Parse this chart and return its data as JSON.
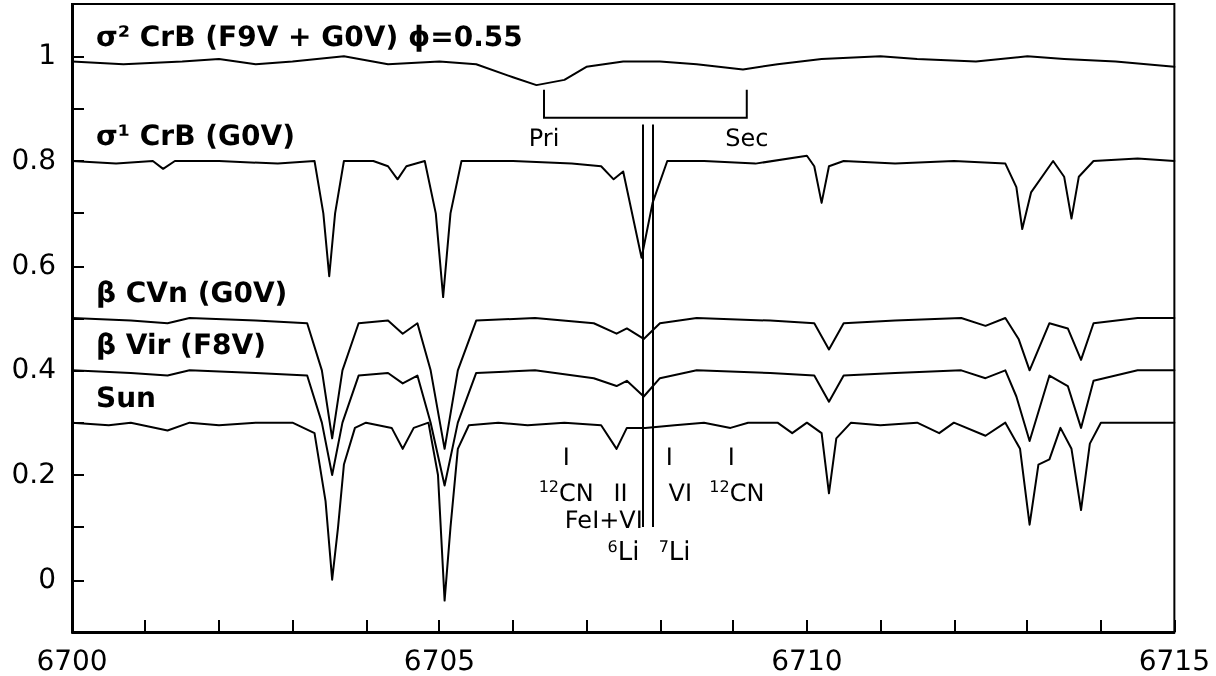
{
  "chart_data": {
    "type": "line",
    "xlim": [
      6700,
      6715
    ],
    "ylim": [
      -0.1,
      1.1
    ],
    "xticks": [
      6700,
      {
        "value": 6701,
        "label": null
      },
      {
        "value": 6702,
        "label": null
      },
      {
        "value": 6703,
        "label": null
      },
      {
        "value": 6704,
        "label": null
      },
      6705,
      {
        "value": 6706,
        "label": null
      },
      {
        "value": 6707,
        "label": null
      },
      {
        "value": 6708,
        "label": null
      },
      {
        "value": 6709,
        "label": null
      },
      6710,
      {
        "value": 6711,
        "label": null
      },
      {
        "value": 6712,
        "label": null
      },
      {
        "value": 6713,
        "label": null
      },
      {
        "value": 6714,
        "label": null
      },
      6715
    ],
    "yticks": [
      {
        "value": -0.1,
        "label": null
      },
      0,
      {
        "value": 0.1,
        "label": null
      },
      0.2,
      {
        "value": 0.3,
        "label": null
      },
      0.4,
      {
        "value": 0.5,
        "label": null
      },
      0.6,
      {
        "value": 0.7,
        "label": null
      },
      0.8,
      {
        "value": 0.9,
        "label": null
      },
      1
    ],
    "grid": false,
    "marker": "none",
    "line_style": "solid",
    "series": [
      {
        "name": "σ² CrB (F9V + G0V) ϕ=0.55",
        "color": "#000000",
        "x": [
          6700,
          6700.7,
          6701.5,
          6702,
          6702.5,
          6703,
          6703.7,
          6704.3,
          6705,
          6705.5,
          6706,
          6706.32,
          6706.7,
          6707,
          6707.5,
          6708,
          6708.5,
          6709.13,
          6709.6,
          6710.2,
          6711,
          6711.5,
          6712.3,
          6713,
          6713.5,
          6714.2,
          6715
        ],
        "values": [
          0.99,
          0.985,
          0.99,
          0.995,
          0.985,
          0.99,
          1.0,
          0.985,
          0.99,
          0.985,
          0.96,
          0.945,
          0.955,
          0.98,
          0.99,
          0.99,
          0.985,
          0.975,
          0.985,
          0.995,
          1.0,
          0.995,
          0.99,
          1.0,
          0.995,
          0.99,
          0.98
        ]
      },
      {
        "name": "σ¹ CrB (G0V)",
        "color": "#000000",
        "x": [
          6700,
          6700.6,
          6701.1,
          6701.24,
          6701.4,
          6702,
          6702.8,
          6703.3,
          6703.42,
          6703.5,
          6703.58,
          6703.7,
          6704.1,
          6704.3,
          6704.43,
          6704.55,
          6704.8,
          6704.95,
          6705.05,
          6705.15,
          6705.3,
          6706,
          6706.8,
          6707.2,
          6707.37,
          6707.5,
          6707.75,
          6707.9,
          6708.1,
          6708.6,
          6709.3,
          6710,
          6710.1,
          6710.2,
          6710.3,
          6710.5,
          6711.2,
          6712,
          6712.7,
          6712.85,
          6712.93,
          6713.05,
          6713.35,
          6713.5,
          6713.6,
          6713.7,
          6713.9,
          6714.5,
          6715
        ],
        "values": [
          0.8,
          0.795,
          0.8,
          0.785,
          0.8,
          0.8,
          0.795,
          0.8,
          0.7,
          0.58,
          0.7,
          0.8,
          0.8,
          0.79,
          0.765,
          0.79,
          0.8,
          0.7,
          0.54,
          0.7,
          0.8,
          0.8,
          0.795,
          0.79,
          0.765,
          0.78,
          0.615,
          0.72,
          0.8,
          0.8,
          0.795,
          0.81,
          0.79,
          0.72,
          0.79,
          0.8,
          0.795,
          0.8,
          0.795,
          0.75,
          0.67,
          0.74,
          0.8,
          0.77,
          0.69,
          0.77,
          0.8,
          0.805,
          0.8
        ]
      },
      {
        "name": "β CVn (G0V)",
        "color": "#000000",
        "x": [
          6700,
          6700.8,
          6701.3,
          6701.6,
          6702.5,
          6703.2,
          6703.4,
          6703.54,
          6703.68,
          6703.9,
          6704.3,
          6704.5,
          6704.7,
          6704.88,
          6705.07,
          6705.25,
          6705.5,
          6706.3,
          6707.1,
          6707.41,
          6707.55,
          6707.78,
          6708.0,
          6708.5,
          6709.5,
          6710.1,
          6710.3,
          6710.5,
          6711.2,
          6712.1,
          6712.43,
          6712.7,
          6712.88,
          6713.03,
          6713.3,
          6713.55,
          6713.73,
          6713.9,
          6714.5,
          6715
        ],
        "values": [
          0.5,
          0.495,
          0.49,
          0.5,
          0.495,
          0.49,
          0.4,
          0.27,
          0.4,
          0.49,
          0.495,
          0.47,
          0.49,
          0.4,
          0.25,
          0.4,
          0.495,
          0.5,
          0.49,
          0.47,
          0.48,
          0.46,
          0.49,
          0.5,
          0.495,
          0.49,
          0.44,
          0.49,
          0.495,
          0.5,
          0.485,
          0.5,
          0.46,
          0.4,
          0.49,
          0.48,
          0.42,
          0.49,
          0.5,
          0.5
        ]
      },
      {
        "name": "β Vir (F8V)",
        "color": "#000000",
        "x": [
          6700,
          6700.8,
          6701.3,
          6701.6,
          6702.5,
          6703.2,
          6703.4,
          6703.54,
          6703.68,
          6703.9,
          6704.3,
          6704.5,
          6704.7,
          6704.88,
          6705.07,
          6705.25,
          6705.5,
          6706.3,
          6707.1,
          6707.41,
          6707.55,
          6707.78,
          6708.0,
          6708.5,
          6709.5,
          6710.1,
          6710.3,
          6710.5,
          6711.2,
          6712.1,
          6712.43,
          6712.7,
          6712.85,
          6713.03,
          6713.3,
          6713.55,
          6713.73,
          6713.9,
          6714.5,
          6715
        ],
        "values": [
          0.4,
          0.395,
          0.39,
          0.4,
          0.395,
          0.39,
          0.3,
          0.2,
          0.3,
          0.39,
          0.395,
          0.375,
          0.39,
          0.3,
          0.18,
          0.3,
          0.395,
          0.4,
          0.385,
          0.37,
          0.38,
          0.35,
          0.385,
          0.4,
          0.395,
          0.39,
          0.34,
          0.39,
          0.395,
          0.4,
          0.385,
          0.4,
          0.35,
          0.265,
          0.39,
          0.37,
          0.29,
          0.38,
          0.4,
          0.4
        ]
      },
      {
        "name": "Sun",
        "color": "#000000",
        "x": [
          6700,
          6700.5,
          6700.8,
          6701.3,
          6701.6,
          6702,
          6702.5,
          6703,
          6703.3,
          6703.45,
          6703.54,
          6703.62,
          6703.7,
          6703.85,
          6704,
          6704.35,
          6704.5,
          6704.65,
          6704.85,
          6704.98,
          6705.07,
          6705.15,
          6705.25,
          6705.4,
          6705.8,
          6706.2,
          6706.7,
          6707.2,
          6707.41,
          6707.55,
          6707.8,
          6708.2,
          6708.6,
          6708.96,
          6709.2,
          6709.6,
          6709.8,
          6710,
          6710.2,
          6710.3,
          6710.4,
          6710.6,
          6711,
          6711.5,
          6711.8,
          6712,
          6712.43,
          6712.7,
          6712.9,
          6713.03,
          6713.15,
          6713.3,
          6713.45,
          6713.6,
          6713.73,
          6713.85,
          6714,
          6714.5,
          6715
        ],
        "values": [
          0.3,
          0.295,
          0.3,
          0.285,
          0.3,
          0.295,
          0.3,
          0.3,
          0.28,
          0.15,
          0.0,
          0.1,
          0.22,
          0.29,
          0.3,
          0.29,
          0.25,
          0.29,
          0.3,
          0.2,
          -0.04,
          0.1,
          0.25,
          0.295,
          0.3,
          0.295,
          0.3,
          0.295,
          0.25,
          0.29,
          0.29,
          0.295,
          0.3,
          0.29,
          0.3,
          0.3,
          0.28,
          0.3,
          0.28,
          0.165,
          0.27,
          0.3,
          0.295,
          0.3,
          0.28,
          0.3,
          0.275,
          0.3,
          0.25,
          0.105,
          0.22,
          0.23,
          0.29,
          0.25,
          0.133,
          0.26,
          0.3,
          0.3,
          0.3
        ]
      }
    ],
    "ref_lines": [
      {
        "axis": "x",
        "value": 6707.75,
        "label": "$^{6}$Li",
        "color": "#000000"
      },
      {
        "axis": "x",
        "value": 6707.9,
        "label": "$^{7}$Li",
        "color": "#000000"
      }
    ],
    "annotations": [
      "Pri",
      "Sec",
      "I",
      "$^{12}$CN",
      "II",
      "FeI+VI",
      "I",
      "VI",
      "I",
      "$^{12}$CN"
    ]
  }
}
